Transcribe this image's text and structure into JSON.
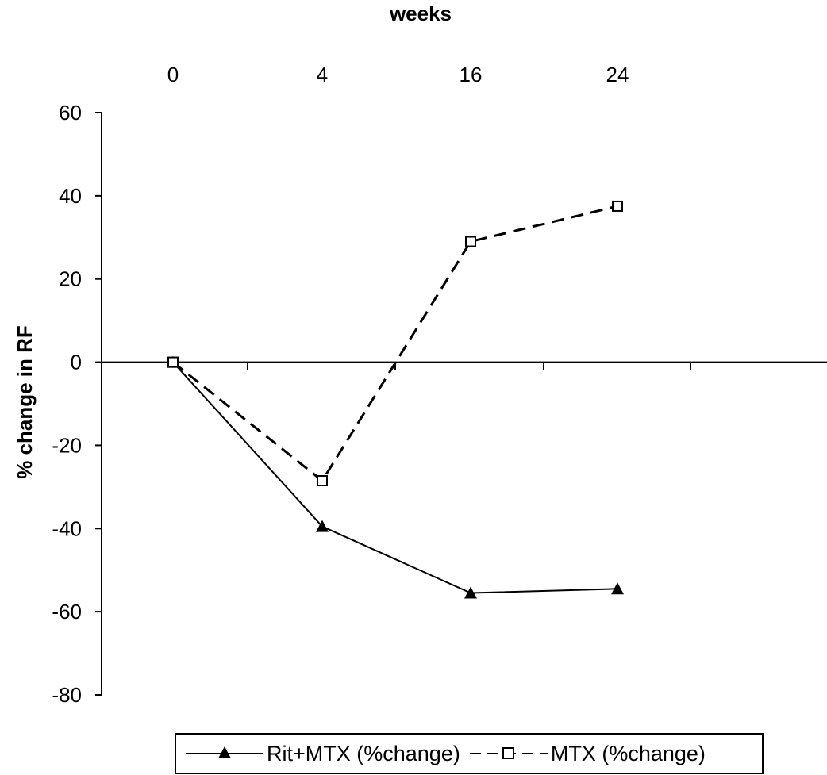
{
  "chart_data": {
    "type": "line",
    "xlabel": "weeks",
    "ylabel_prefix": "% change in ",
    "ylabel_bold": "RF",
    "x": [
      0,
      4,
      16,
      24
    ],
    "x_tick_labels": [
      "0",
      "4",
      "16",
      "24"
    ],
    "x_axis_position": "top",
    "ylim": [
      -80,
      60
    ],
    "y_ticks": [
      60,
      40,
      20,
      0,
      -20,
      -40,
      -60,
      -80
    ],
    "grid": false,
    "series": [
      {
        "name": "Rit+MTX (%change)",
        "values": [
          0,
          -39.5,
          -55.5,
          -54.5
        ],
        "marker": "filled-triangle",
        "line_style": "solid",
        "color": "#000000"
      },
      {
        "name": "MTX (%change)",
        "values": [
          0,
          -28.5,
          29,
          37.5
        ],
        "marker": "open-square",
        "line_style": "dashed",
        "color": "#000000"
      }
    ],
    "legend_position": "bottom"
  }
}
